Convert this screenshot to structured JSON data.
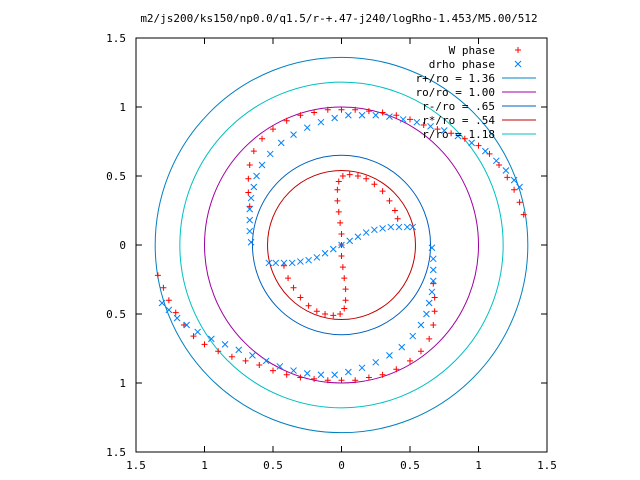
{
  "chart_data": {
    "type": "scatter",
    "title": "m2/js200/ks150/np0.0/q1.5/r-+.47-j240/logRho-1.453/M5.00/512",
    "xlim": [
      -1.5,
      1.5
    ],
    "ylim": [
      -1.5,
      1.5
    ],
    "x_tick_labels": [
      "1.5",
      "1",
      "0.5",
      "0",
      "0.5",
      "1",
      "1.5"
    ],
    "y_tick_labels": [
      "1.5",
      "1",
      "0.5",
      "0",
      "0.5",
      "1",
      "1.5"
    ],
    "x_ticks": [
      -1.5,
      -1,
      -0.5,
      0,
      0.5,
      1,
      1.5
    ],
    "y_ticks": [
      1.5,
      1,
      0.5,
      0,
      -0.5,
      -1,
      -1.5
    ],
    "grid": false,
    "legend_position": "top-right",
    "series": [
      {
        "name": "W phase",
        "kind": "points",
        "marker": "plus",
        "color": "#ff0000",
        "points": [
          [
            0.0,
            0.0
          ],
          [
            0.0,
            0.08
          ],
          [
            -0.01,
            0.16
          ],
          [
            -0.02,
            0.24
          ],
          [
            -0.03,
            0.32
          ],
          [
            -0.03,
            0.4
          ],
          [
            -0.02,
            0.46
          ],
          [
            0.01,
            0.5
          ],
          [
            0.06,
            0.51
          ],
          [
            0.12,
            0.5
          ],
          [
            0.18,
            0.48
          ],
          [
            0.24,
            0.44
          ],
          [
            0.3,
            0.39
          ],
          [
            0.35,
            0.32
          ],
          [
            0.39,
            0.25
          ],
          [
            0.41,
            0.19
          ],
          [
            0.0,
            -0.08
          ],
          [
            0.01,
            -0.16
          ],
          [
            0.02,
            -0.24
          ],
          [
            0.03,
            -0.32
          ],
          [
            0.03,
            -0.4
          ],
          [
            0.02,
            -0.46
          ],
          [
            -0.01,
            -0.5
          ],
          [
            -0.06,
            -0.51
          ],
          [
            -0.12,
            -0.5
          ],
          [
            -0.18,
            -0.48
          ],
          [
            -0.24,
            -0.44
          ],
          [
            -0.3,
            -0.38
          ],
          [
            -0.35,
            -0.31
          ],
          [
            -0.39,
            -0.24
          ],
          [
            -0.42,
            -0.15
          ],
          [
            0.0,
            0.98
          ],
          [
            -0.1,
            0.98
          ],
          [
            -0.2,
            0.96
          ],
          [
            -0.3,
            0.94
          ],
          [
            -0.4,
            0.9
          ],
          [
            -0.5,
            0.84
          ],
          [
            -0.58,
            0.77
          ],
          [
            -0.64,
            0.68
          ],
          [
            -0.67,
            0.58
          ],
          [
            -0.68,
            0.48
          ],
          [
            -0.68,
            0.38
          ],
          [
            -0.67,
            0.28
          ],
          [
            0.1,
            0.98
          ],
          [
            0.2,
            0.97
          ],
          [
            0.3,
            0.96
          ],
          [
            0.4,
            0.94
          ],
          [
            0.5,
            0.91
          ],
          [
            0.6,
            0.87
          ],
          [
            0.7,
            0.84
          ],
          [
            0.8,
            0.81
          ],
          [
            0.9,
            0.77
          ],
          [
            1.0,
            0.72
          ],
          [
            1.08,
            0.66
          ],
          [
            1.15,
            0.58
          ],
          [
            1.21,
            0.49
          ],
          [
            1.26,
            0.4
          ],
          [
            1.3,
            0.31
          ],
          [
            1.33,
            0.22
          ],
          [
            0.0,
            -0.98
          ],
          [
            0.1,
            -0.98
          ],
          [
            0.2,
            -0.96
          ],
          [
            0.3,
            -0.94
          ],
          [
            0.4,
            -0.9
          ],
          [
            0.5,
            -0.84
          ],
          [
            0.58,
            -0.77
          ],
          [
            0.64,
            -0.68
          ],
          [
            0.67,
            -0.58
          ],
          [
            0.68,
            -0.48
          ],
          [
            0.68,
            -0.38
          ],
          [
            0.67,
            -0.28
          ],
          [
            -0.1,
            -0.98
          ],
          [
            -0.2,
            -0.97
          ],
          [
            -0.3,
            -0.96
          ],
          [
            -0.4,
            -0.94
          ],
          [
            -0.5,
            -0.91
          ],
          [
            -0.6,
            -0.87
          ],
          [
            -0.7,
            -0.84
          ],
          [
            -0.8,
            -0.81
          ],
          [
            -0.9,
            -0.77
          ],
          [
            -1.0,
            -0.72
          ],
          [
            -1.08,
            -0.66
          ],
          [
            -1.15,
            -0.58
          ],
          [
            -1.21,
            -0.49
          ],
          [
            -1.26,
            -0.4
          ],
          [
            -1.3,
            -0.31
          ],
          [
            -1.34,
            -0.22
          ]
        ]
      },
      {
        "name": "drho phase",
        "kind": "points",
        "marker": "cross",
        "color": "#0080ff",
        "points": [
          [
            0.0,
            0.0
          ],
          [
            0.06,
            0.03
          ],
          [
            0.12,
            0.06
          ],
          [
            0.18,
            0.09
          ],
          [
            0.24,
            0.11
          ],
          [
            0.3,
            0.12
          ],
          [
            0.36,
            0.13
          ],
          [
            0.42,
            0.13
          ],
          [
            0.48,
            0.13
          ],
          [
            0.52,
            0.13
          ],
          [
            -0.06,
            -0.03
          ],
          [
            -0.12,
            -0.06
          ],
          [
            -0.18,
            -0.09
          ],
          [
            -0.24,
            -0.11
          ],
          [
            -0.3,
            -0.12
          ],
          [
            -0.36,
            -0.13
          ],
          [
            -0.42,
            -0.13
          ],
          [
            -0.48,
            -0.13
          ],
          [
            -0.53,
            -0.13
          ],
          [
            -0.66,
            0.02
          ],
          [
            -0.67,
            0.1
          ],
          [
            -0.67,
            0.18
          ],
          [
            -0.67,
            0.26
          ],
          [
            -0.66,
            0.34
          ],
          [
            -0.64,
            0.42
          ],
          [
            -0.62,
            0.5
          ],
          [
            -0.58,
            0.58
          ],
          [
            -0.52,
            0.66
          ],
          [
            -0.44,
            0.74
          ],
          [
            -0.35,
            0.8
          ],
          [
            -0.25,
            0.85
          ],
          [
            -0.15,
            0.89
          ],
          [
            -0.05,
            0.92
          ],
          [
            0.05,
            0.94
          ],
          [
            0.15,
            0.94
          ],
          [
            0.25,
            0.94
          ],
          [
            0.35,
            0.93
          ],
          [
            0.45,
            0.91
          ],
          [
            0.55,
            0.89
          ],
          [
            0.65,
            0.86
          ],
          [
            0.75,
            0.83
          ],
          [
            0.85,
            0.79
          ],
          [
            0.95,
            0.74
          ],
          [
            1.05,
            0.68
          ],
          [
            1.13,
            0.61
          ],
          [
            1.2,
            0.54
          ],
          [
            1.26,
            0.47
          ],
          [
            1.3,
            0.42
          ],
          [
            0.66,
            -0.02
          ],
          [
            0.67,
            -0.1
          ],
          [
            0.67,
            -0.18
          ],
          [
            0.67,
            -0.26
          ],
          [
            0.66,
            -0.34
          ],
          [
            0.64,
            -0.42
          ],
          [
            0.62,
            -0.5
          ],
          [
            0.58,
            -0.58
          ],
          [
            0.52,
            -0.66
          ],
          [
            0.44,
            -0.74
          ],
          [
            0.35,
            -0.8
          ],
          [
            0.25,
            -0.85
          ],
          [
            0.15,
            -0.89
          ],
          [
            0.05,
            -0.92
          ],
          [
            -0.05,
            -0.94
          ],
          [
            -0.15,
            -0.94
          ],
          [
            -0.25,
            -0.93
          ],
          [
            -0.35,
            -0.91
          ],
          [
            -0.45,
            -0.88
          ],
          [
            -0.55,
            -0.84
          ],
          [
            -0.65,
            -0.8
          ],
          [
            -0.75,
            -0.76
          ],
          [
            -0.85,
            -0.72
          ],
          [
            -0.95,
            -0.68
          ],
          [
            -1.05,
            -0.63
          ],
          [
            -1.13,
            -0.58
          ],
          [
            -1.2,
            -0.53
          ],
          [
            -1.26,
            -0.47
          ],
          [
            -1.31,
            -0.42
          ]
        ]
      },
      {
        "name": "r+/ro = 1.36",
        "kind": "circle",
        "radius": 1.36,
        "color": "#0080c0"
      },
      {
        "name": "ro/ro = 1.00",
        "kind": "circle",
        "radius": 1.0,
        "color": "#a000a0"
      },
      {
        "name": "r-/ro = .65",
        "kind": "circle",
        "radius": 0.65,
        "color": "#0060c0"
      },
      {
        "name": "r*/ro = .54",
        "kind": "circle",
        "radius": 0.54,
        "color": "#c00000"
      },
      {
        "name": "r/ro = 1.18",
        "kind": "circle",
        "radius": 1.18,
        "color": "#00c0c0"
      }
    ]
  }
}
